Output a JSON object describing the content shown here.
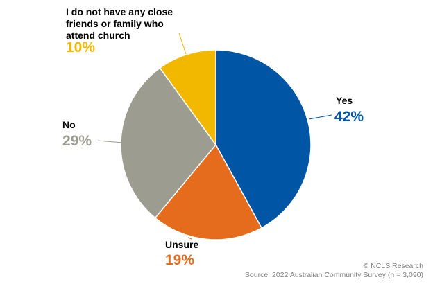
{
  "chart_data": {
    "type": "pie",
    "start_angle_deg": 0,
    "direction": "clockwise",
    "slices": [
      {
        "label": "Yes",
        "value": 42,
        "value_label": "42%",
        "color": "#0055a5"
      },
      {
        "label": "Unsure",
        "value": 19,
        "value_label": "19%",
        "color": "#e46c1c"
      },
      {
        "label": "No",
        "value": 29,
        "value_label": "29%",
        "color": "#9c9c90"
      },
      {
        "label": "I do not have any close friends or family who attend church",
        "label_lines": [
          "I do not have any close",
          "friends or family who",
          "attend church"
        ],
        "value": 10,
        "value_label": "10%",
        "color": "#f2b800"
      }
    ],
    "legend": "none"
  },
  "footer": {
    "copyright": "© NCLS Research",
    "source": "Source: 2022 Australian Community Survey (n = 3,090)"
  }
}
